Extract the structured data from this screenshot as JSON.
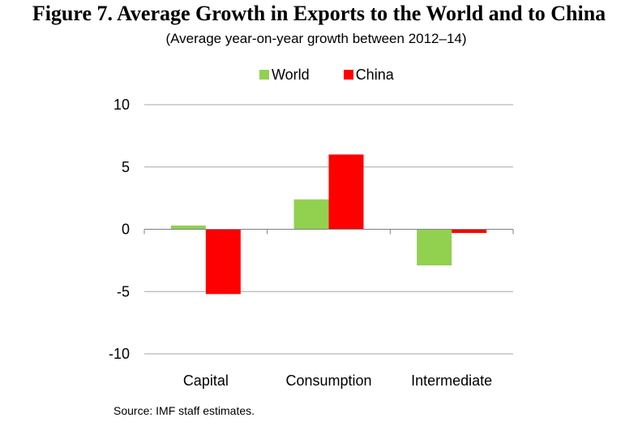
{
  "title": "Figure 7. Average Growth in Exports to the World and to China",
  "subtitle": "(Average year-on-year growth between 2012–14)",
  "source": "Source: IMF staff estimates.",
  "chart_data": {
    "type": "bar",
    "categories": [
      "Capital",
      "Consumption",
      "Intermediate"
    ],
    "series": [
      {
        "name": "World",
        "values": [
          0.3,
          2.4,
          -2.9
        ],
        "color": "#92d050"
      },
      {
        "name": "China",
        "values": [
          -5.2,
          6.0,
          -0.3
        ],
        "color": "#ff0000"
      }
    ],
    "ylim": [
      -10,
      10
    ],
    "yticks": [
      10,
      5,
      0,
      -5,
      -10
    ],
    "ytick_labels": [
      "10",
      "5",
      "0",
      "-5",
      "-10"
    ],
    "grid": true,
    "legend": "top-center"
  }
}
